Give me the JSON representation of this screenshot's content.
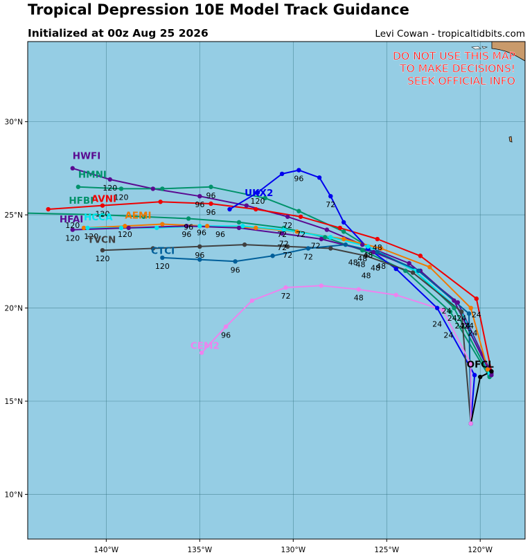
{
  "header": {
    "title": "Tropical Depression 10E Model Track Guidance",
    "subtitle": "Initialized at 00z Aug 25 2026",
    "credit": "Levi Cowan - tropicaltidbits.com"
  },
  "warning": {
    "lines": [
      "DO NOT USE THIS MAP",
      "TO MAKE DECISIONS!",
      "SEEK OFFICIAL INFO"
    ],
    "color": "#ff0000"
  },
  "map": {
    "lon_range": [
      -144.2,
      -117.6
    ],
    "lat_range": [
      7.6,
      34.3
    ],
    "ocean_color": "#95cde4",
    "land_color": "#c99a6b",
    "grid_color": "#2f6f7d",
    "lon_ticks": [
      -140,
      -135,
      -130,
      -125,
      -120
    ],
    "lon_tick_labels": [
      "140°W",
      "135°W",
      "130°W",
      "125°W",
      "120°W"
    ],
    "lat_ticks": [
      10,
      15,
      20,
      25,
      30
    ],
    "lat_tick_labels": [
      "10°N",
      "15°N",
      "20°N",
      "25°N",
      "30°N"
    ]
  },
  "tracks": [
    {
      "name": "HWFI",
      "color": "#5a0a91",
      "label": [
        -141.8,
        28.0
      ],
      "points": [
        [
          -119.4,
          16.5
        ],
        [
          -121.2,
          20.3
        ],
        [
          -123.8,
          22.4
        ],
        [
          -126.3,
          23.4
        ],
        [
          -128.2,
          24.2
        ],
        [
          -130.3,
          24.9
        ],
        [
          -132.5,
          25.5
        ],
        [
          -135.0,
          26.0
        ],
        [
          -137.5,
          26.4
        ],
        [
          -139.8,
          26.9
        ],
        [
          -141.8,
          27.5
        ]
      ],
      "hours": [
        {
          "at": [
            -121.2,
            20.3
          ],
          "text": "24"
        },
        {
          "at": [
            -126.3,
            23.4
          ],
          "text": "48"
        },
        {
          "at": [
            -130.3,
            24.9
          ],
          "text": "72"
        },
        {
          "at": [
            -135.0,
            26.0
          ],
          "text": "96"
        },
        {
          "at": [
            -139.8,
            26.9
          ],
          "text": "120"
        }
      ]
    },
    {
      "name": "HMNI",
      "color": "#00926a",
      "label": [
        -141.5,
        27.0
      ],
      "points": [
        [
          -119.5,
          16.4
        ],
        [
          -121.4,
          20.0
        ],
        [
          -123.5,
          22.0
        ],
        [
          -126.0,
          23.3
        ],
        [
          -127.3,
          24.1
        ],
        [
          -129.7,
          25.2
        ],
        [
          -131.5,
          25.9
        ],
        [
          -134.4,
          26.5
        ],
        [
          -137.0,
          26.4
        ],
        [
          -139.2,
          26.4
        ],
        [
          -141.5,
          26.5
        ]
      ],
      "hours": [
        {
          "at": [
            -121.4,
            20.0
          ],
          "text": "24"
        },
        {
          "at": [
            -126.0,
            23.3
          ],
          "text": "48"
        },
        {
          "at": [
            -129.7,
            25.2
          ],
          "text": "72"
        },
        {
          "at": [
            -134.4,
            26.5
          ],
          "text": "96"
        },
        {
          "at": [
            -139.2,
            26.4
          ],
          "text": "120"
        }
      ]
    },
    {
      "name": "AVNI",
      "color": "#ee0000",
      "label": [
        -140.8,
        25.7
      ],
      "points": [
        [
          -119.4,
          16.6
        ],
        [
          -120.2,
          20.5
        ],
        [
          -123.2,
          22.8
        ],
        [
          -125.5,
          23.7
        ],
        [
          -127.5,
          24.3
        ],
        [
          -129.6,
          24.9
        ],
        [
          -132.0,
          25.3
        ],
        [
          -134.4,
          25.6
        ],
        [
          -137.1,
          25.7
        ],
        [
          -140.2,
          25.5
        ],
        [
          -143.1,
          25.3
        ]
      ],
      "hours": [
        {
          "at": [
            -120.2,
            20.5
          ],
          "text": "24"
        },
        {
          "at": [
            -125.5,
            23.7
          ],
          "text": "48"
        },
        {
          "at": [
            -129.6,
            24.9
          ],
          "text": "72"
        },
        {
          "at": [
            -134.4,
            25.6
          ],
          "text": "96"
        },
        {
          "at": [
            -140.2,
            25.5
          ],
          "text": "120"
        }
      ]
    },
    {
      "name": "HFBI",
      "color": "#00926a",
      "label": [
        -142.0,
        25.6
      ],
      "points": [
        [
          -119.5,
          16.3
        ],
        [
          -121.6,
          19.8
        ],
        [
          -124.0,
          22.0
        ],
        [
          -126.3,
          23.1
        ],
        [
          -128.3,
          23.8
        ],
        [
          -130.5,
          24.3
        ],
        [
          -132.9,
          24.6
        ],
        [
          -135.6,
          24.8
        ],
        [
          -138.0,
          24.9
        ],
        [
          -140.2,
          25.0
        ],
        [
          -144.5,
          25.1
        ]
      ],
      "hours": [
        {
          "at": [
            -121.6,
            19.8
          ],
          "text": "24"
        },
        {
          "at": [
            -126.3,
            23.1
          ],
          "text": "48"
        },
        {
          "at": [
            -130.5,
            24.3
          ],
          "text": "72"
        },
        {
          "at": [
            -135.6,
            24.8
          ],
          "text": "96"
        },
        {
          "at": [
            -140.2,
            25.0
          ],
          "text": "120"
        }
      ]
    },
    {
      "name": "UKX2",
      "color": "#0000ee",
      "label": [
        -132.6,
        26.0
      ],
      "points": [
        [
          -120.5,
          13.8
        ],
        [
          -120.3,
          16.4
        ],
        [
          -122.3,
          20.0
        ],
        [
          -124.5,
          22.1
        ],
        [
          -126.0,
          23.2
        ],
        [
          -127.3,
          24.6
        ],
        [
          -128.0,
          26.0
        ],
        [
          -128.6,
          27.0
        ],
        [
          -129.7,
          27.4
        ],
        [
          -130.6,
          27.2
        ],
        [
          -131.9,
          26.2
        ],
        [
          -133.4,
          25.3
        ]
      ],
      "hours": [
        {
          "at": [
            -122.3,
            20.0
          ],
          "text": "24"
        },
        {
          "at": [
            -126.0,
            23.2
          ],
          "text": "48"
        },
        {
          "at": [
            -128.0,
            26.0
          ],
          "text": "72"
        },
        {
          "at": [
            -129.7,
            27.4
          ],
          "text": "96"
        },
        {
          "at": [
            -131.9,
            26.2
          ],
          "text": "120"
        }
      ]
    },
    {
      "name": "AEMI",
      "color": "#f07800",
      "label": [
        -139.0,
        24.8
      ],
      "points": [
        [
          -119.6,
          16.7
        ],
        [
          -120.5,
          20.0
        ],
        [
          -122.7,
          22.2
        ],
        [
          -125.3,
          23.2
        ],
        [
          -127.3,
          23.7
        ],
        [
          -129.8,
          24.1
        ],
        [
          -132.0,
          24.3
        ],
        [
          -134.6,
          24.4
        ],
        [
          -137.0,
          24.5
        ],
        [
          -139.0,
          24.4
        ],
        [
          -141.2,
          24.3
        ]
      ],
      "hours": [
        {
          "at": [
            -120.5,
            20.0
          ],
          "text": "24"
        },
        {
          "at": [
            -125.3,
            23.2
          ],
          "text": "48"
        },
        {
          "at": [
            -129.8,
            24.1
          ],
          "text": "72"
        },
        {
          "at": [
            -134.6,
            24.4
          ],
          "text": "96"
        },
        {
          "at": [
            -139.0,
            24.4
          ],
          "text": "120"
        }
      ]
    },
    {
      "name": "HCCA",
      "color": "#00e5ee",
      "label": [
        -141.2,
        24.7
      ],
      "points": [
        [
          -119.5,
          16.5
        ],
        [
          -121.0,
          19.8
        ],
        [
          -123.5,
          22.0
        ],
        [
          -126.0,
          23.3
        ],
        [
          -128.0,
          23.8
        ],
        [
          -130.5,
          24.2
        ],
        [
          -132.7,
          24.4
        ],
        [
          -135.0,
          24.4
        ],
        [
          -137.3,
          24.3
        ],
        [
          -139.2,
          24.3
        ],
        [
          -141.0,
          24.3
        ]
      ],
      "hours": [
        {
          "at": [
            -121.0,
            19.8
          ],
          "text": "24"
        },
        {
          "at": [
            -126.0,
            23.3
          ],
          "text": "48"
        },
        {
          "at": [
            -130.5,
            24.2
          ],
          "text": "72"
        },
        {
          "at": [
            -135.0,
            24.4
          ],
          "text": "96"
        },
        {
          "at": [
            -139.2,
            24.3
          ],
          "text": "120"
        }
      ]
    },
    {
      "name": "HFAI",
      "color": "#5a0a91",
      "label": [
        -142.5,
        24.6
      ],
      "points": [
        [
          -119.4,
          16.4
        ],
        [
          -121.4,
          20.4
        ],
        [
          -123.2,
          22.0
        ],
        [
          -125.7,
          23.0
        ],
        [
          -128.5,
          23.7
        ],
        [
          -130.6,
          24.0
        ],
        [
          -132.9,
          24.3
        ],
        [
          -135.7,
          24.4
        ],
        [
          -138.8,
          24.3
        ],
        [
          -141.8,
          24.2
        ]
      ],
      "hours": [
        {
          "at": [
            -121.4,
            20.4
          ],
          "text": "24"
        },
        {
          "at": [
            -125.7,
            23.0
          ],
          "text": "48"
        },
        {
          "at": [
            -130.6,
            24.0
          ],
          "text": "72"
        },
        {
          "at": [
            -135.7,
            24.4
          ],
          "text": "96"
        },
        {
          "at": [
            -138.8,
            24.3
          ],
          "text": "120"
        }
      ]
    },
    {
      "name": "TVCN",
      "color": "#404040",
      "label": [
        -141.0,
        23.5
      ],
      "points": [
        [
          -120.5,
          13.8
        ],
        [
          -121.0,
          19.8
        ],
        [
          -123.6,
          21.9
        ],
        [
          -126.1,
          22.8
        ],
        [
          -128.0,
          23.2
        ],
        [
          -130.3,
          23.3
        ],
        [
          -132.6,
          23.4
        ],
        [
          -135.0,
          23.3
        ],
        [
          -137.5,
          23.2
        ],
        [
          -140.2,
          23.1
        ]
      ],
      "hours": [
        {
          "at": [
            -121.0,
            19.8
          ],
          "text": "24"
        },
        {
          "at": [
            -126.1,
            22.8
          ],
          "text": "48"
        },
        {
          "at": [
            -130.3,
            23.3
          ],
          "text": "72"
        },
        {
          "at": [
            -135.0,
            23.3
          ],
          "text": "96"
        },
        {
          "at": [
            -140.2,
            23.1
          ],
          "text": "120"
        }
      ]
    },
    {
      "name": "CTCI",
      "color": "#005f9a",
      "label": [
        -137.6,
        22.9
      ],
      "points": [
        [
          -120.5,
          13.8
        ],
        [
          -120.6,
          19.7
        ],
        [
          -123.3,
          22.0
        ],
        [
          -125.5,
          23.0
        ],
        [
          -127.2,
          23.4
        ],
        [
          -129.2,
          23.2
        ],
        [
          -131.1,
          22.8
        ],
        [
          -133.1,
          22.5
        ],
        [
          -135.0,
          22.6
        ],
        [
          -137.0,
          22.7
        ]
      ],
      "hours": [
        {
          "at": [
            -120.6,
            19.7
          ],
          "text": "24"
        },
        {
          "at": [
            -125.5,
            23.0
          ],
          "text": "48"
        },
        {
          "at": [
            -129.2,
            23.2
          ],
          "text": "72"
        },
        {
          "at": [
            -133.1,
            22.5
          ],
          "text": "96"
        },
        {
          "at": [
            -137.0,
            22.7
          ],
          "text": "120"
        }
      ]
    },
    {
      "name": "CEM2",
      "color": "#ee82ee",
      "label": [
        -135.5,
        17.8
      ],
      "points": [
        [
          -120.5,
          13.8
        ],
        [
          -120.5,
          17.0
        ],
        [
          -122.0,
          19.9
        ],
        [
          -124.5,
          20.7
        ],
        [
          -126.5,
          21.0
        ],
        [
          -128.5,
          21.2
        ],
        [
          -130.4,
          21.1
        ],
        [
          -132.2,
          20.4
        ],
        [
          -133.6,
          19.0
        ],
        [
          -134.9,
          17.6
        ]
      ],
      "hours": [
        {
          "at": [
            -122.0,
            19.9
          ],
          "text": "24"
        },
        {
          "at": [
            -126.5,
            21.0
          ],
          "text": "48"
        },
        {
          "at": [
            -130.4,
            21.1
          ],
          "text": "72"
        },
        {
          "at": [
            -133.6,
            19.0
          ],
          "text": "96"
        }
      ]
    }
  ],
  "hour_labels": [
    {
      "at": [
        -139.8,
        26.9
      ],
      "text": "120"
    },
    {
      "at": [
        -139.2,
        26.4
      ],
      "text": "120"
    },
    {
      "at": [
        -140.2,
        25.5
      ],
      "text": "120"
    },
    {
      "at": [
        -141.8,
        24.9
      ],
      "text": "120"
    },
    {
      "at": [
        -139.0,
        24.4
      ],
      "text": "120"
    },
    {
      "at": [
        -140.8,
        24.3
      ],
      "text": "120"
    },
    {
      "at": [
        -141.8,
        24.2
      ],
      "text": "120"
    },
    {
      "at": [
        -140.2,
        23.1
      ],
      "text": "120"
    },
    {
      "at": [
        -137.0,
        22.7
      ],
      "text": "120"
    },
    {
      "at": [
        -131.9,
        26.2
      ],
      "text": "120"
    },
    {
      "at": [
        -129.7,
        27.4
      ],
      "text": "96"
    },
    {
      "at": [
        -134.4,
        26.5
      ],
      "text": "96"
    },
    {
      "at": [
        -135.0,
        26.0
      ],
      "text": "96"
    },
    {
      "at": [
        -134.4,
        25.6
      ],
      "text": "96"
    },
    {
      "at": [
        -135.6,
        24.8
      ],
      "text": "96"
    },
    {
      "at": [
        -134.9,
        24.5
      ],
      "text": "96"
    },
    {
      "at": [
        -135.7,
        24.4
      ],
      "text": "96"
    },
    {
      "at": [
        -133.9,
        24.4
      ],
      "text": "96"
    },
    {
      "at": [
        -135.0,
        23.3
      ],
      "text": "96"
    },
    {
      "at": [
        -133.1,
        22.5
      ],
      "text": "96"
    },
    {
      "at": [
        -133.6,
        19.0
      ],
      "text": "96"
    },
    {
      "at": [
        -128.0,
        26.0
      ],
      "text": "72"
    },
    {
      "at": [
        -130.3,
        24.9
      ],
      "text": "72"
    },
    {
      "at": [
        -130.6,
        24.4
      ],
      "text": "72"
    },
    {
      "at": [
        -129.6,
        24.4
      ],
      "text": "72"
    },
    {
      "at": [
        -130.5,
        23.9
      ],
      "text": "72"
    },
    {
      "at": [
        -130.6,
        23.7
      ],
      "text": "72"
    },
    {
      "at": [
        -128.8,
        23.8
      ],
      "text": "72"
    },
    {
      "at": [
        -130.3,
        23.3
      ],
      "text": "72"
    },
    {
      "at": [
        -129.2,
        23.2
      ],
      "text": "72"
    },
    {
      "at": [
        -130.4,
        21.1
      ],
      "text": "72"
    },
    {
      "at": [
        -125.5,
        23.7
      ],
      "text": "48"
    },
    {
      "at": [
        -126.0,
        23.3
      ],
      "text": "48"
    },
    {
      "at": [
        -126.3,
        23.1
      ],
      "text": "48"
    },
    {
      "at": [
        -126.8,
        22.9
      ],
      "text": "48"
    },
    {
      "at": [
        -126.4,
        22.8
      ],
      "text": "48"
    },
    {
      "at": [
        -125.3,
        22.7
      ],
      "text": "48"
    },
    {
      "at": [
        -125.6,
        22.6
      ],
      "text": "48"
    },
    {
      "at": [
        -126.1,
        22.2
      ],
      "text": "48"
    },
    {
      "at": [
        -126.5,
        21.0
      ],
      "text": "48"
    },
    {
      "at": [
        -121.8,
        20.3
      ],
      "text": "24"
    },
    {
      "at": [
        -120.2,
        20.1
      ],
      "text": "24"
    },
    {
      "at": [
        -121.5,
        19.9
      ],
      "text": "24"
    },
    {
      "at": [
        -121.0,
        19.9
      ],
      "text": "24"
    },
    {
      "at": [
        -120.8,
        19.5
      ],
      "text": "24"
    },
    {
      "at": [
        -121.1,
        19.5
      ],
      "text": "24"
    },
    {
      "at": [
        -120.6,
        19.5
      ],
      "text": "24"
    },
    {
      "at": [
        -120.4,
        19.1
      ],
      "text": "24"
    },
    {
      "at": [
        -122.3,
        19.6
      ],
      "text": "24"
    },
    {
      "at": [
        -121.7,
        19.0
      ],
      "text": "24"
    }
  ],
  "ofcl": {
    "name": "OFCL",
    "color": "#000000",
    "label": [
      -120.0,
      16.8
    ],
    "origin": [
      -120.5,
      13.8
    ],
    "points": [
      [
        -120.0,
        16.3
      ],
      [
        -119.4,
        16.6
      ]
    ]
  }
}
